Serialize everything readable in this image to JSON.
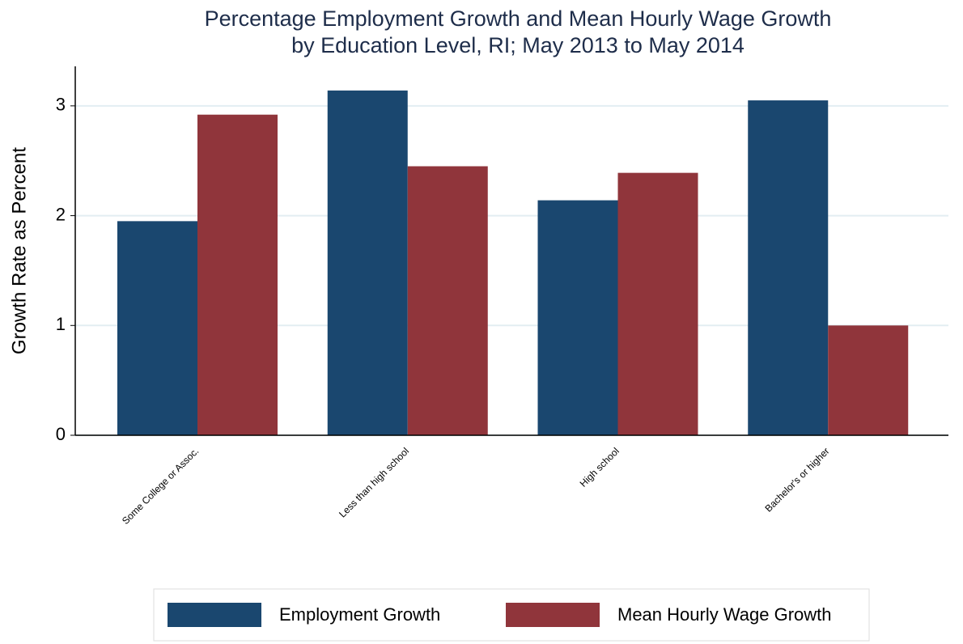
{
  "chart_data": {
    "type": "bar",
    "title": [
      "Percentage Employment Growth and Mean Hourly Wage Growth",
      "by Education Level, RI; May 2013 to May 2014"
    ],
    "y_label": "Growth Rate as Percent",
    "categories": [
      "Some College or Assoc.",
      "Less than high school",
      "High school",
      "Bachelor's or higher"
    ],
    "series": [
      {
        "name": "Employment Growth",
        "color": "#1a476f",
        "values": [
          1.95,
          3.14,
          2.14,
          3.05
        ]
      },
      {
        "name": "Mean Hourly Wage Growth",
        "color": "#90353b",
        "values": [
          2.92,
          2.45,
          2.39,
          1.0
        ]
      }
    ],
    "ylim": [
      0,
      3.36
    ],
    "yticks": [
      0,
      1,
      2,
      3
    ],
    "grid": true
  }
}
